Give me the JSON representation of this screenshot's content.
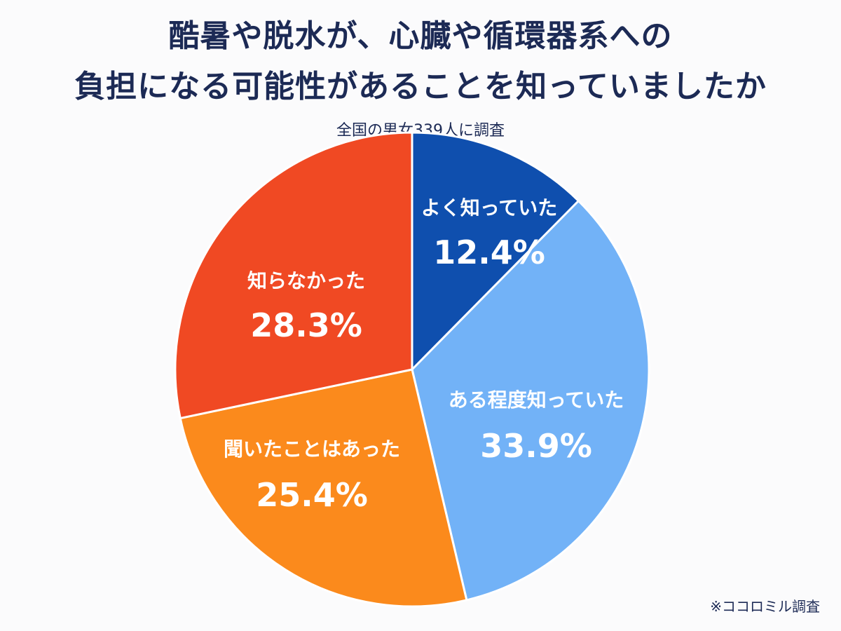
{
  "header": {
    "title_line1": "酷暑や脱水が、心臓や循環器系への",
    "title_line2": "負担になる可能性があることを知っていましたか",
    "subtitle": "全国の男女339人に調査"
  },
  "footer": {
    "source": "※ココロミル調査"
  },
  "chart_data": {
    "type": "pie",
    "title": "酷暑や脱水が、心臓や循環器系への負担になる可能性があることを知っていましたか",
    "subtitle": "全国の男女339人に調査",
    "start": "top",
    "direction": "clockwise",
    "slices": [
      {
        "label": "よく知っていた",
        "value": 12.4,
        "display": "12.4%",
        "color": "#0f4fae"
      },
      {
        "label": "ある程度知っていた",
        "value": 33.9,
        "display": "33.9%",
        "color": "#72b2f7"
      },
      {
        "label": "聞いたことはあった",
        "value": 25.4,
        "display": "25.4%",
        "color": "#fb8a1c"
      },
      {
        "label": "知らなかった",
        "value": 28.3,
        "display": "28.3%",
        "color": "#f04923"
      }
    ]
  }
}
